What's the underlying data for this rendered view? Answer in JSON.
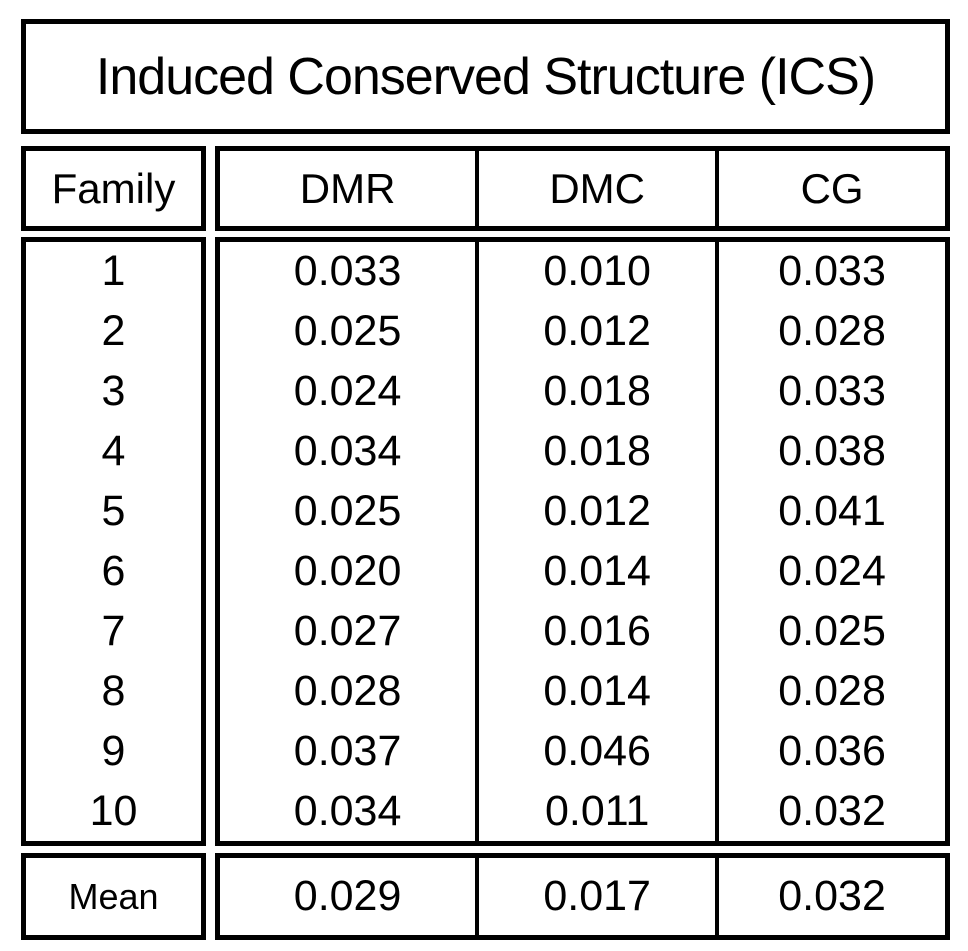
{
  "title": "Induced Conserved Structure (ICS)",
  "columns": {
    "family": "Family",
    "dmr": "DMR",
    "dmc": "DMC",
    "cg": "CG"
  },
  "rows": [
    {
      "family": "1",
      "dmr": "0.033",
      "dmc": "0.010",
      "cg": "0.033"
    },
    {
      "family": "2",
      "dmr": "0.025",
      "dmc": "0.012",
      "cg": "0.028"
    },
    {
      "family": "3",
      "dmr": "0.024",
      "dmc": "0.018",
      "cg": "0.033"
    },
    {
      "family": "4",
      "dmr": "0.034",
      "dmc": "0.018",
      "cg": "0.038"
    },
    {
      "family": "5",
      "dmr": "0.025",
      "dmc": "0.012",
      "cg": "0.041"
    },
    {
      "family": "6",
      "dmr": "0.020",
      "dmc": "0.014",
      "cg": "0.024"
    },
    {
      "family": "7",
      "dmr": "0.027",
      "dmc": "0.016",
      "cg": "0.025"
    },
    {
      "family": "8",
      "dmr": "0.028",
      "dmc": "0.014",
      "cg": "0.028"
    },
    {
      "family": "9",
      "dmr": "0.037",
      "dmc": "0.046",
      "cg": "0.036"
    },
    {
      "family": "10",
      "dmr": "0.034",
      "dmc": "0.011",
      "cg": "0.032"
    }
  ],
  "mean": {
    "label": "Mean",
    "dmr": "0.029",
    "dmc": "0.017",
    "cg": "0.032"
  },
  "colors": {
    "border": "#000000",
    "background": "#ffffff",
    "text": "#000000"
  },
  "chart_data": {
    "type": "table",
    "title": "Induced Conserved Structure (ICS)",
    "columns": [
      "Family",
      "DMR",
      "DMC",
      "CG"
    ],
    "rows": [
      [
        "1",
        0.033,
        0.01,
        0.033
      ],
      [
        "2",
        0.025,
        0.012,
        0.028
      ],
      [
        "3",
        0.024,
        0.018,
        0.033
      ],
      [
        "4",
        0.034,
        0.018,
        0.038
      ],
      [
        "5",
        0.025,
        0.012,
        0.041
      ],
      [
        "6",
        0.02,
        0.014,
        0.024
      ],
      [
        "7",
        0.027,
        0.016,
        0.025
      ],
      [
        "8",
        0.028,
        0.014,
        0.028
      ],
      [
        "9",
        0.037,
        0.046,
        0.036
      ],
      [
        "10",
        0.034,
        0.011,
        0.032
      ]
    ],
    "footer_row": [
      "Mean",
      0.029,
      0.017,
      0.032
    ]
  }
}
